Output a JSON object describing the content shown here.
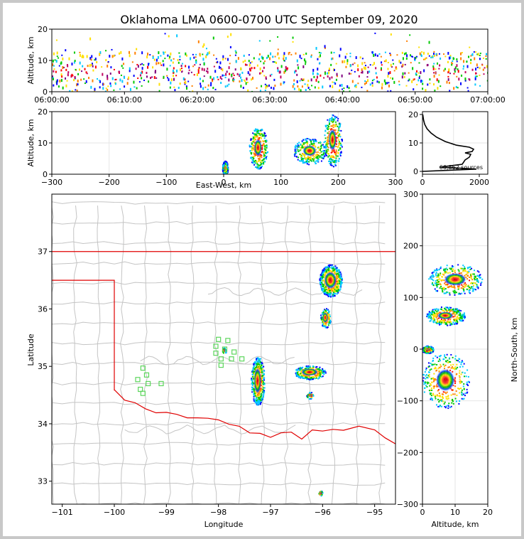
{
  "chart_data": [
    {
      "type": "heatmap",
      "panel": "altitude-time",
      "title": "Oklahoma LMA 0600-0700 UTC September 09, 2020",
      "ylabel": "Altitude, km",
      "ylim": [
        0,
        20
      ],
      "yticks": [
        "0",
        "10",
        "20"
      ],
      "xticks": [
        "06:00:00",
        "06:10:00",
        "06:20:00",
        "06:30:00",
        "06:40:00",
        "06:50:00",
        "07:00:00"
      ],
      "xlim_minutes": [
        0,
        60
      ],
      "band_altitude_km": [
        1,
        13
      ]
    },
    {
      "type": "heatmap",
      "panel": "altitude-eastwest",
      "xlabel": "East-West, km",
      "ylabel": "Altitude, km",
      "xlim": [
        -300,
        300
      ],
      "ylim": [
        0,
        20
      ],
      "xticks": [
        "−300",
        "−200",
        "−100",
        "0",
        "100",
        "200",
        "300"
      ],
      "yticks": [
        "0",
        "10",
        "20"
      ],
      "cells": [
        {
          "x": 60,
          "z_lo": 3,
          "z_hi": 14,
          "intensity": 0.95
        },
        {
          "x": 150,
          "z_lo": 4,
          "z_hi": 11,
          "intensity": 0.7
        },
        {
          "x": 190,
          "z_lo": 4,
          "z_hi": 18,
          "intensity": 0.95
        },
        {
          "x": 2,
          "z_lo": 0,
          "z_hi": 4,
          "intensity": 0.5
        }
      ]
    },
    {
      "type": "line",
      "panel": "altitude-histogram",
      "xticks": [
        "0",
        "2000"
      ],
      "xlim": [
        0,
        2300
      ],
      "yticks": [
        "0",
        "10",
        "20"
      ],
      "ylim": [
        0,
        21
      ],
      "annotation": "66,862 sources",
      "profile": [
        [
          0,
          0
        ],
        [
          1900,
          0.8
        ],
        [
          600,
          1.5
        ],
        [
          1400,
          2.5
        ],
        [
          1500,
          4
        ],
        [
          1650,
          5
        ],
        [
          1700,
          6
        ],
        [
          1500,
          6.5
        ],
        [
          1750,
          7
        ],
        [
          1800,
          7.8
        ],
        [
          1650,
          8.5
        ],
        [
          1200,
          9.2
        ],
        [
          800,
          10.5
        ],
        [
          500,
          12
        ],
        [
          300,
          13.5
        ],
        [
          160,
          15
        ],
        [
          80,
          16.5
        ],
        [
          40,
          18
        ],
        [
          10,
          20
        ]
      ]
    },
    {
      "type": "heatmap",
      "panel": "plan-view",
      "xlabel": "Longitude",
      "ylabel": "Latitude",
      "xlim": [
        -101.2,
        -94.6
      ],
      "ylim": [
        32.6,
        38
      ],
      "xticks": [
        "−101",
        "−100",
        "−99",
        "−98",
        "−97",
        "−96",
        "−95"
      ],
      "yticks": [
        "33",
        "34",
        "35",
        "36",
        "37"
      ],
      "cells": [
        {
          "lon": -95.85,
          "lat": 36.5,
          "rx": 0.22,
          "ry": 0.28
        },
        {
          "lon": -95.95,
          "lat": 35.85,
          "rx": 0.1,
          "ry": 0.17
        },
        {
          "lon": -97.25,
          "lat": 34.75,
          "rx": 0.13,
          "ry": 0.42
        },
        {
          "lon": -96.25,
          "lat": 34.9,
          "rx": 0.3,
          "ry": 0.12
        },
        {
          "lon": -96.25,
          "lat": 34.5,
          "rx": 0.07,
          "ry": 0.06
        },
        {
          "lon": -96.05,
          "lat": 32.8,
          "rx": 0.04,
          "ry": 0.05
        },
        {
          "lon": -97.9,
          "lat": 35.28,
          "rx": 0.04,
          "ry": 0.05
        }
      ],
      "stations": [
        [
          -98,
          35.47
        ],
        [
          -97.82,
          35.45
        ],
        [
          -98.05,
          35.35
        ],
        [
          -97.88,
          35.3
        ],
        [
          -98.05,
          35.23
        ],
        [
          -97.7,
          35.25
        ],
        [
          -97.95,
          35.13
        ],
        [
          -97.75,
          35.13
        ],
        [
          -97.55,
          35.13
        ],
        [
          -97.95,
          35.02
        ],
        [
          -99.45,
          34.97
        ],
        [
          -99.38,
          34.85
        ],
        [
          -99.55,
          34.77
        ],
        [
          -99.35,
          34.7
        ],
        [
          -99.1,
          34.7
        ],
        [
          -99.5,
          34.6
        ],
        [
          -99.45,
          34.53
        ]
      ]
    },
    {
      "type": "heatmap",
      "panel": "northsouth-altitude",
      "xlabel": "Altitude, km",
      "ylabel": "North-South, km",
      "xlim": [
        0,
        20
      ],
      "ylim": [
        -300,
        300
      ],
      "xticks": [
        "0",
        "10",
        "20"
      ],
      "yticks": [
        "−300",
        "−200",
        "−100",
        "0",
        "100",
        "200",
        "300"
      ],
      "cells": [
        {
          "z": 10,
          "y": 135,
          "rz": 7,
          "ry": 25
        },
        {
          "z": 7,
          "y": 65,
          "rz": 5,
          "ry": 15
        },
        {
          "z": 7,
          "y": -60,
          "rz": 6,
          "ry": 45
        },
        {
          "z": 1.5,
          "y": 0,
          "rz": 1.5,
          "ry": 6
        }
      ]
    }
  ]
}
